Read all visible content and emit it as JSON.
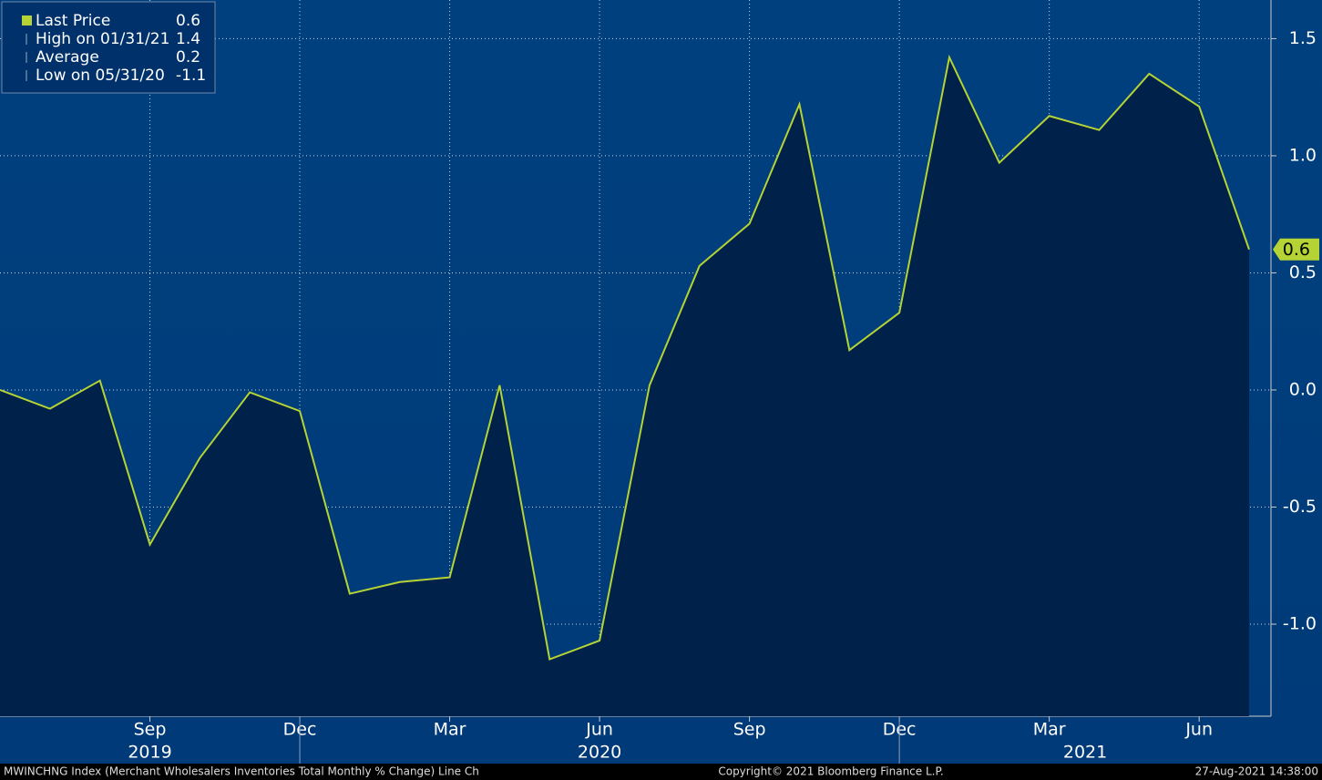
{
  "chart_data": {
    "type": "area-line",
    "x": [
      "2019-06",
      "2019-07",
      "2019-08",
      "2019-09",
      "2019-10",
      "2019-11",
      "2019-12",
      "2020-01",
      "2020-02",
      "2020-03",
      "2020-04",
      "2020-05",
      "2020-06",
      "2020-07",
      "2020-08",
      "2020-09",
      "2020-10",
      "2020-11",
      "2020-12",
      "2021-01",
      "2021-02",
      "2021-03",
      "2021-04",
      "2021-05",
      "2021-06",
      "2021-07"
    ],
    "series": [
      {
        "name": "Last Price",
        "color": "#b5d334",
        "fill": "#00224a",
        "values": [
          0.0,
          -0.08,
          0.04,
          -0.66,
          -0.29,
          -0.01,
          -0.09,
          -0.87,
          -0.82,
          -0.8,
          0.02,
          -1.15,
          -1.07,
          0.02,
          0.53,
          0.71,
          1.22,
          0.17,
          0.33,
          1.42,
          0.97,
          1.17,
          1.11,
          1.35,
          1.21,
          0.6
        ],
        "last_label": 0.6
      }
    ],
    "legend": [
      {
        "label": "Last Price",
        "value": 0.6
      },
      {
        "label": "High on 01/31/21",
        "value": 1.4
      },
      {
        "label": "Average",
        "value": 0.2
      },
      {
        "label": "Low on 05/31/20",
        "value": -1.1
      }
    ],
    "ylim": [
      -1.393,
      1.665
    ],
    "yticks": [
      {
        "value": 1.5,
        "label": "1.5"
      },
      {
        "value": 1,
        "label": "1.0"
      },
      {
        "value": 0.5,
        "label": "0.5"
      },
      {
        "value": 0,
        "label": "0.0"
      },
      {
        "value": -0.5,
        "label": "-0.5"
      },
      {
        "value": -1,
        "label": "-1.0"
      }
    ],
    "xticks": [
      {
        "value": "2019-09",
        "label": "Sep"
      },
      {
        "value": "2019-12",
        "label": "Dec"
      },
      {
        "value": "2020-03",
        "label": "Mar"
      },
      {
        "value": "2020-06",
        "label": "Jun"
      },
      {
        "value": "2020-09",
        "label": "Sep"
      },
      {
        "value": "2020-12",
        "label": "Dec"
      },
      {
        "value": "2021-03",
        "label": "Mar"
      },
      {
        "value": "2021-06",
        "label": "Jun"
      }
    ],
    "year_labels": [
      "2019",
      "2020",
      "2021"
    ],
    "grid": true,
    "source": "MWINCHNG Index (Merchant Wholesalers Inventories Total Monthly % Change) Line Ch",
    "copyright": "Copyright© 2021 Bloomberg Finance L.P.",
    "timestamp": "27-Aug-2021 14:38:00"
  }
}
